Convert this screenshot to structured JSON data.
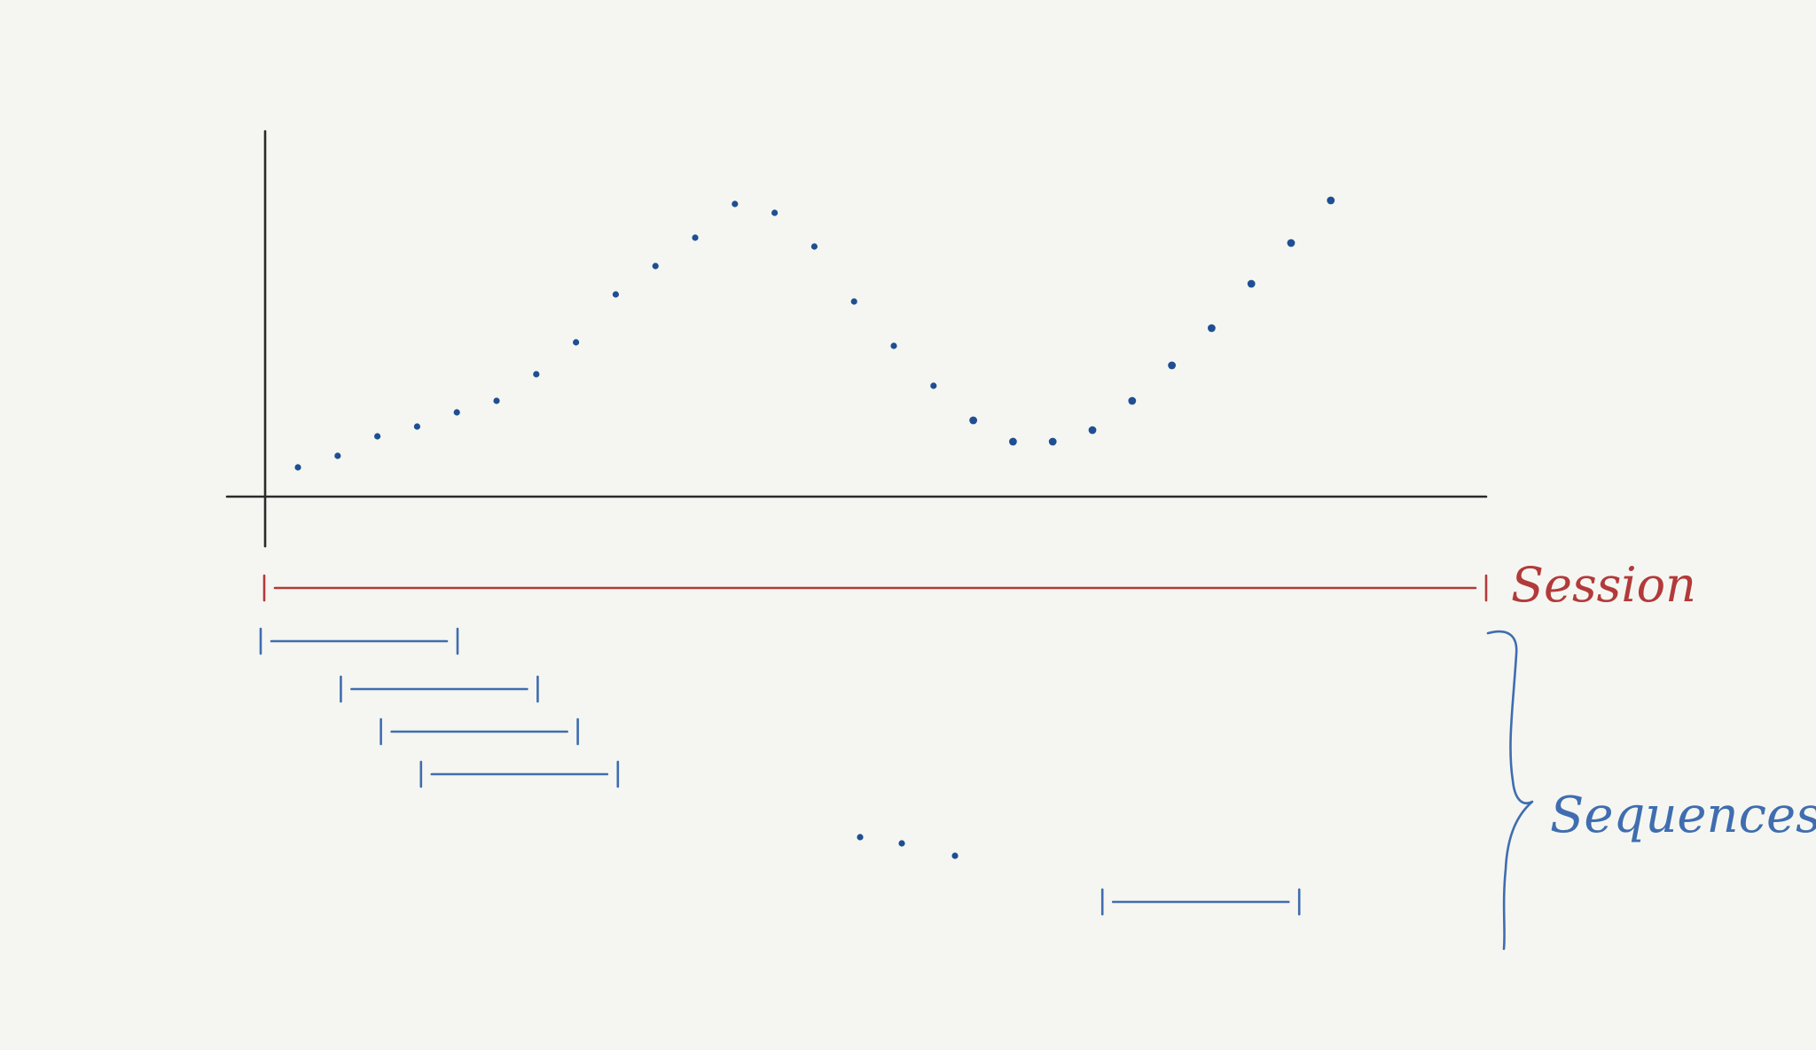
{
  "labels": {
    "session": "Session",
    "sequences": "Sequences",
    "ellipsis": ". . ."
  },
  "colors": {
    "background": "#f5f6f1",
    "axis": "#2a2a2a",
    "points": "#1f4f93",
    "session": "#b23a3a",
    "sequences": "#3f6db0"
  },
  "series_points": [
    0.33,
    0.46,
    0.68,
    0.79,
    0.95,
    1.08,
    1.38,
    1.74,
    2.28,
    2.6,
    2.92,
    3.3,
    3.2,
    2.82,
    2.2,
    1.7,
    1.25,
    0.86,
    0.62,
    0.62,
    0.75,
    1.08,
    1.48,
    1.9,
    2.4,
    2.86,
    3.34
  ],
  "session": {
    "start_step": 0,
    "end_step": 26
  },
  "sequences": [
    {
      "start_step": 0,
      "end_step": 5
    },
    {
      "start_step": 2,
      "end_step": 7
    },
    {
      "start_step": 3,
      "end_step": 8
    },
    {
      "start_step": 4,
      "end_step": 9
    },
    {
      "start_step": 21,
      "end_step": 26
    }
  ]
}
